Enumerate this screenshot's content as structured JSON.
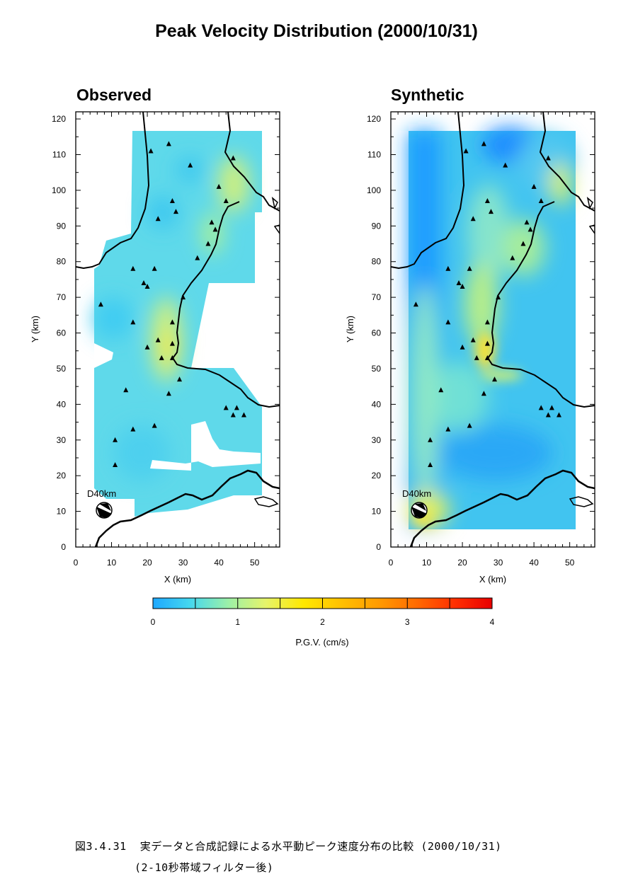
{
  "title": "Peak Velocity Distribution (2000/10/31)",
  "panels": [
    {
      "title": "Observed",
      "xlabel": "X (km)",
      "ylabel": "Y (km)",
      "source_label": "D40km"
    },
    {
      "title": "Synthetic",
      "xlabel": "X (km)",
      "ylabel": "Y (km)",
      "source_label": "D40km"
    }
  ],
  "colorbar": {
    "label": "P.G.V. (cm/s)",
    "range": [
      0,
      4
    ],
    "ticks": [
      "0",
      "1",
      "2",
      "3",
      "4"
    ],
    "colors": [
      "#1ea8ff",
      "#46d8ee",
      "#9cf0a8",
      "#e6f46a",
      "#ffe800",
      "#ffc000",
      "#ff9a00",
      "#ff6a00",
      "#ff3000",
      "#e80000"
    ]
  },
  "caption": {
    "line1": "図3.4.31  実データと合成記録による水平動ピーク速度分布の比較 (2000/10/31)",
    "line2": "(2-10秒帯域フィルター後)"
  },
  "chart_data": [
    {
      "type": "heatmap",
      "title": "Observed",
      "xlabel": "X (km)",
      "ylabel": "Y (km)",
      "xlim": [
        0,
        57
      ],
      "ylim": [
        0,
        122
      ],
      "xticks": [
        0,
        10,
        20,
        30,
        40,
        50
      ],
      "yticks": [
        0,
        10,
        20,
        30,
        40,
        50,
        60,
        70,
        80,
        90,
        100,
        110,
        120
      ],
      "grid": false,
      "value_label": "P.G.V. (cm/s)",
      "value_range": [
        0,
        4
      ],
      "stations": [
        [
          26,
          113
        ],
        [
          21,
          111
        ],
        [
          32,
          107
        ],
        [
          44,
          109
        ],
        [
          27,
          97
        ],
        [
          28,
          94
        ],
        [
          23,
          92
        ],
        [
          40,
          101
        ],
        [
          42,
          97
        ],
        [
          38,
          91
        ],
        [
          39,
          89
        ],
        [
          37,
          85
        ],
        [
          34,
          81
        ],
        [
          16,
          78
        ],
        [
          22,
          78
        ],
        [
          19,
          74
        ],
        [
          20,
          73
        ],
        [
          30,
          70
        ],
        [
          7,
          68
        ],
        [
          16,
          63
        ],
        [
          27,
          63
        ],
        [
          27,
          57
        ],
        [
          23,
          58
        ],
        [
          20,
          56
        ],
        [
          27,
          53
        ],
        [
          24,
          53
        ],
        [
          29,
          47
        ],
        [
          26,
          43
        ],
        [
          14,
          44
        ],
        [
          16,
          33
        ],
        [
          22,
          34
        ],
        [
          42,
          39
        ],
        [
          45,
          39
        ],
        [
          47,
          37
        ],
        [
          44,
          37
        ],
        [
          11,
          30
        ],
        [
          11,
          23
        ]
      ],
      "source": {
        "label": "D40km",
        "x": 8,
        "y": 10
      },
      "notes": "Most values ~0.2-0.6 cm/s; maximum near X 25, Y 55 (~1.0 cm/s) and along coast near X 42, Y 102 (~0.9 cm/s)."
    },
    {
      "type": "heatmap",
      "title": "Synthetic",
      "xlabel": "X (km)",
      "ylabel": "Y (km)",
      "xlim": [
        0,
        57
      ],
      "ylim": [
        0,
        122
      ],
      "xticks": [
        0,
        10,
        20,
        30,
        40,
        50
      ],
      "yticks": [
        0,
        10,
        20,
        30,
        40,
        50,
        60,
        70,
        80,
        90,
        100,
        110,
        120
      ],
      "grid": false,
      "value_label": "P.G.V. (cm/s)",
      "value_range": [
        0,
        4
      ],
      "stations": [
        [
          26,
          113
        ],
        [
          21,
          111
        ],
        [
          32,
          107
        ],
        [
          44,
          109
        ],
        [
          27,
          97
        ],
        [
          28,
          94
        ],
        [
          23,
          92
        ],
        [
          40,
          101
        ],
        [
          42,
          97
        ],
        [
          38,
          91
        ],
        [
          39,
          89
        ],
        [
          37,
          85
        ],
        [
          34,
          81
        ],
        [
          16,
          78
        ],
        [
          22,
          78
        ],
        [
          19,
          74
        ],
        [
          20,
          73
        ],
        [
          30,
          70
        ],
        [
          7,
          68
        ],
        [
          16,
          63
        ],
        [
          27,
          63
        ],
        [
          27,
          57
        ],
        [
          23,
          58
        ],
        [
          20,
          56
        ],
        [
          27,
          53
        ],
        [
          24,
          53
        ],
        [
          29,
          47
        ],
        [
          26,
          43
        ],
        [
          14,
          44
        ],
        [
          16,
          33
        ],
        [
          22,
          34
        ],
        [
          42,
          39
        ],
        [
          45,
          39
        ],
        [
          47,
          37
        ],
        [
          44,
          37
        ],
        [
          11,
          30
        ],
        [
          11,
          23
        ]
      ],
      "source": {
        "label": "D40km",
        "x": 8,
        "y": 10
      },
      "notes": "Low values (~0-0.2 cm/s) on western edge; maximum near X 27, Y 55 (~1.0 cm/s) and near source X 8, Y 8 (~1.0 cm/s)."
    }
  ]
}
